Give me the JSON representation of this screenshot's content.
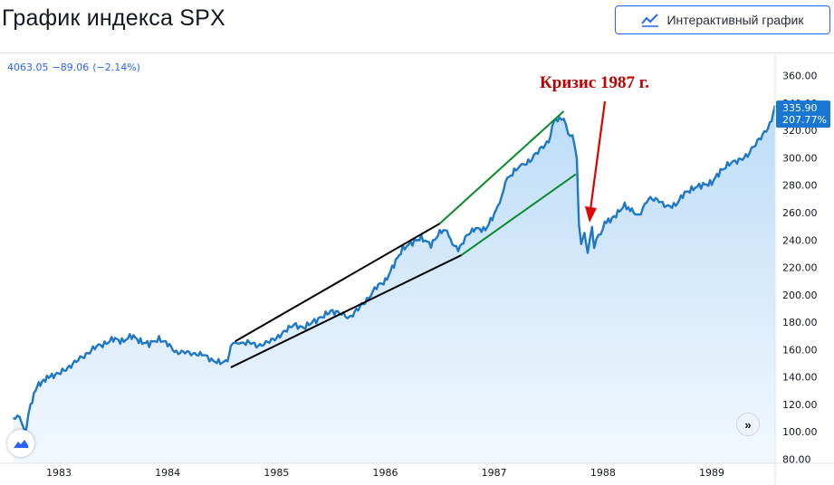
{
  "header": {
    "title": "График индекса SPX",
    "interactive_button_label": "Интерактивный график",
    "interactive_button_icon": "line-chart-icon"
  },
  "quote": {
    "price": "4063.05",
    "change": "−89.06",
    "change_pct": "(−2.14%)"
  },
  "price_tag": {
    "value": "335.90",
    "pct": "207.77%",
    "color": "#1976d2"
  },
  "annotation": {
    "text": "Кризис 1987 г.",
    "color": "#c00000"
  },
  "colors": {
    "line": "#1f77c6",
    "area_top": "#bcdcf7",
    "area_bottom": "#f2f8fe",
    "black_channel": "#000000",
    "green_channel": "#0a8a2a",
    "arrow": "#e00000",
    "accent": "#2962ff"
  },
  "chart_data": {
    "type": "area",
    "title": "График индекса SPX",
    "x_ticks": [
      "1983",
      "1984",
      "1985",
      "1986",
      "1987",
      "1988",
      "1989"
    ],
    "y_ticks": [
      "80.00",
      "100.00",
      "120.00",
      "140.00",
      "160.00",
      "180.00",
      "200.00",
      "220.00",
      "240.00",
      "260.00",
      "280.00",
      "300.00",
      "320.00",
      "340.00",
      "360.00"
    ],
    "ylim": [
      80,
      370
    ],
    "xlim": [
      1982.58,
      1989.58
    ],
    "grid": false,
    "series": [
      {
        "x": [
          1982.58,
          1982.62,
          1982.66,
          1982.7,
          1982.74,
          1982.8,
          1982.86,
          1982.92,
          1983.0,
          1983.08,
          1983.16,
          1983.25,
          1983.33,
          1983.42,
          1983.5,
          1983.58,
          1983.67,
          1983.75,
          1983.83,
          1983.92,
          1984.0,
          1984.08,
          1984.16,
          1984.25,
          1984.33,
          1984.42,
          1984.5,
          1984.55,
          1984.58,
          1984.62,
          1984.67,
          1984.75,
          1984.83,
          1984.92,
          1985.0,
          1985.08,
          1985.16,
          1985.25,
          1985.33,
          1985.42,
          1985.5,
          1985.58,
          1985.67,
          1985.75,
          1985.83,
          1985.92,
          1986.0,
          1986.08,
          1986.16,
          1986.25,
          1986.33,
          1986.42,
          1986.5,
          1986.55,
          1986.6,
          1986.67,
          1986.75,
          1986.83,
          1986.92,
          1987.0,
          1987.05,
          1987.12,
          1987.2,
          1987.25,
          1987.33,
          1987.42,
          1987.5,
          1987.55,
          1987.6,
          1987.64,
          1987.68,
          1987.72,
          1987.76,
          1987.78,
          1987.8,
          1987.83,
          1987.86,
          1987.9,
          1987.92,
          1987.96,
          1988.0,
          1988.05,
          1988.12,
          1988.2,
          1988.25,
          1988.33,
          1988.42,
          1988.5,
          1988.58,
          1988.67,
          1988.75,
          1988.83,
          1988.92,
          1989.0,
          1989.08,
          1989.16,
          1989.25,
          1989.33,
          1989.42,
          1989.5,
          1989.55,
          1989.58
        ],
        "values": [
          110,
          112,
          106,
          102,
          120,
          133,
          138,
          140,
          143,
          146,
          152,
          156,
          162,
          164,
          168,
          166,
          170,
          166,
          164,
          168,
          164,
          158,
          158,
          157,
          156,
          152,
          150,
          152,
          162,
          166,
          164,
          166,
          162,
          166,
          168,
          174,
          178,
          176,
          180,
          184,
          188,
          187,
          183,
          190,
          196,
          206,
          210,
          222,
          234,
          238,
          242,
          236,
          246,
          248,
          240,
          232,
          244,
          248,
          248,
          258,
          268,
          284,
          292,
          294,
          298,
          306,
          312,
          326,
          330,
          328,
          318,
          316,
          300,
          250,
          238,
          244,
          232,
          248,
          236,
          242,
          250,
          254,
          258,
          266,
          262,
          258,
          270,
          270,
          264,
          266,
          274,
          278,
          280,
          282,
          290,
          296,
          298,
          302,
          312,
          320,
          326,
          338
        ]
      }
    ]
  }
}
